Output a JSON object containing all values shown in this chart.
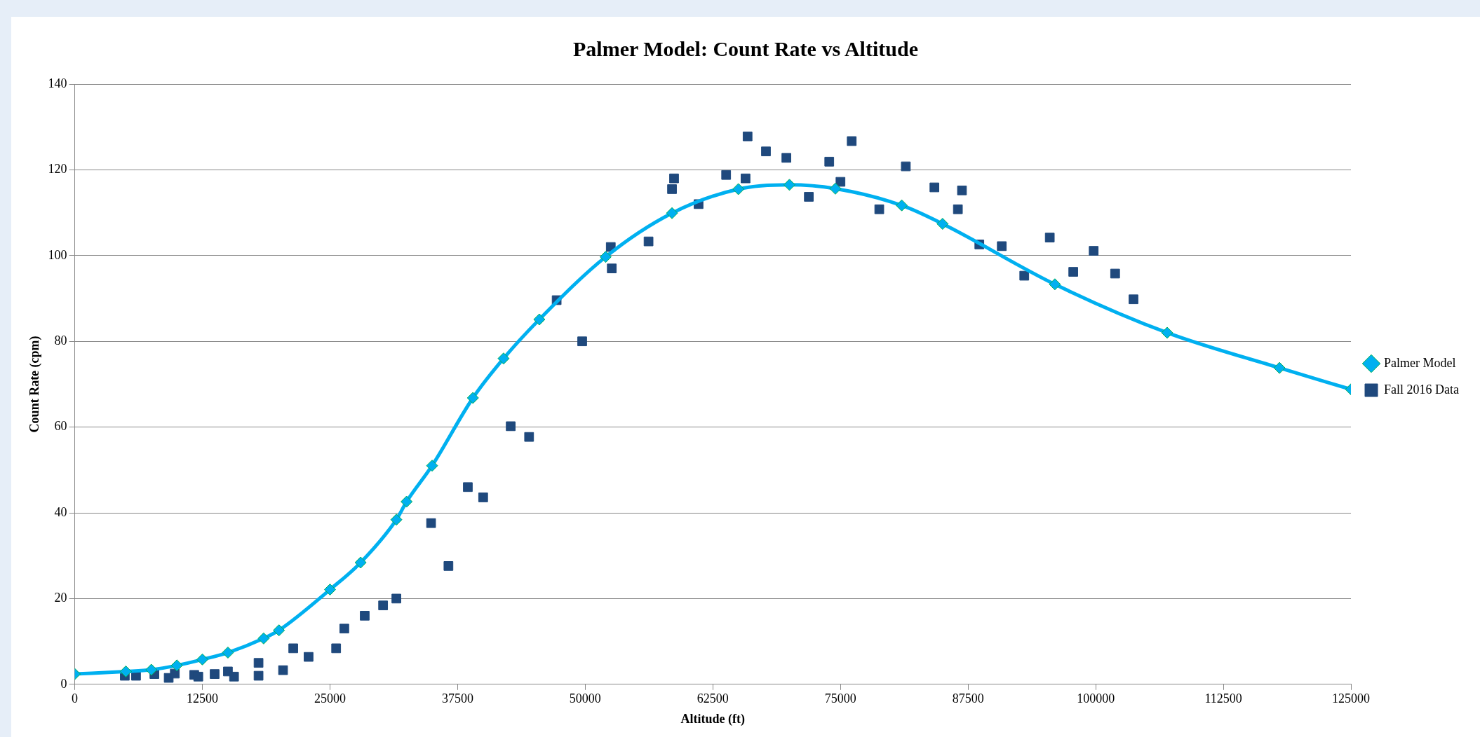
{
  "chart_data": {
    "type": "scatter",
    "title": "Palmer Model: Count Rate vs Altitude",
    "xlabel": "Altitude (ft)",
    "ylabel": "Count Rate (cpm)",
    "xlim": [
      0,
      125000
    ],
    "xticks": [
      0,
      12500,
      25000,
      37500,
      50000,
      62500,
      75000,
      87500,
      100000,
      112500,
      125000
    ],
    "ylim": [
      0,
      140
    ],
    "yticks": [
      0,
      20,
      40,
      60,
      80,
      100,
      120,
      140
    ],
    "grid": "y",
    "legend": "right",
    "series": [
      {
        "name": "Palmer Model",
        "type": "line",
        "color": "#00b0f0",
        "marker": "diamond",
        "line_style": "solid",
        "x": [
          0,
          5000,
          7500,
          10000,
          12500,
          15000,
          18500,
          20000,
          25000,
          28000,
          31500,
          32500,
          35000,
          39000,
          42000,
          45500,
          52000,
          58500,
          65000,
          70000,
          74500,
          81000,
          85000,
          96000,
          107000,
          118000,
          125000
        ],
        "values": [
          2.4,
          3,
          3.4,
          4.4,
          5.8,
          7.4,
          10.7,
          12.6,
          22.1,
          28.4,
          38.4,
          42.6,
          51,
          66.8,
          76,
          85.1,
          99.7,
          109.9,
          115.5,
          116.5,
          115.6,
          111.7,
          107.4,
          93.3,
          82,
          73.8,
          68.8
        ]
      },
      {
        "name": "Fall 2016 Data",
        "type": "scatter",
        "color": "#1f497d",
        "marker": "square",
        "x": [
          4900,
          6000,
          7800,
          9200,
          9800,
          11700,
          12100,
          13700,
          15000,
          15600,
          18000,
          18000,
          20400,
          21400,
          22900,
          25600,
          26400,
          28400,
          30200,
          31500,
          34900,
          36600,
          38500,
          40000,
          42700,
          44500,
          47200,
          49700,
          52500,
          52600,
          56200,
          58500,
          58700,
          61100,
          63800,
          65900,
          65700,
          67700,
          69700,
          71900,
          73900,
          75000,
          76100,
          78800,
          81400,
          84200,
          86500,
          86900,
          88600,
          90800,
          93000,
          95500,
          97800,
          99800,
          101900,
          103700
        ],
        "values": [
          2,
          2,
          2.4,
          1.5,
          2.5,
          2.2,
          1.8,
          2.4,
          3,
          1.8,
          5,
          2,
          3.3,
          8.4,
          6.4,
          8.4,
          13,
          16,
          18.4,
          20,
          37.6,
          27.6,
          46,
          43.6,
          60.2,
          57.7,
          89.6,
          80,
          102,
          97,
          103.3,
          115.5,
          118,
          112,
          118.8,
          127.8,
          118,
          124.3,
          122.8,
          113.7,
          121.9,
          117.2,
          126.7,
          110.8,
          120.8,
          115.9,
          110.8,
          115.2,
          102.6,
          102.2,
          95.3,
          104.2,
          96.2,
          101.1,
          95.8,
          89.8
        ]
      }
    ]
  }
}
